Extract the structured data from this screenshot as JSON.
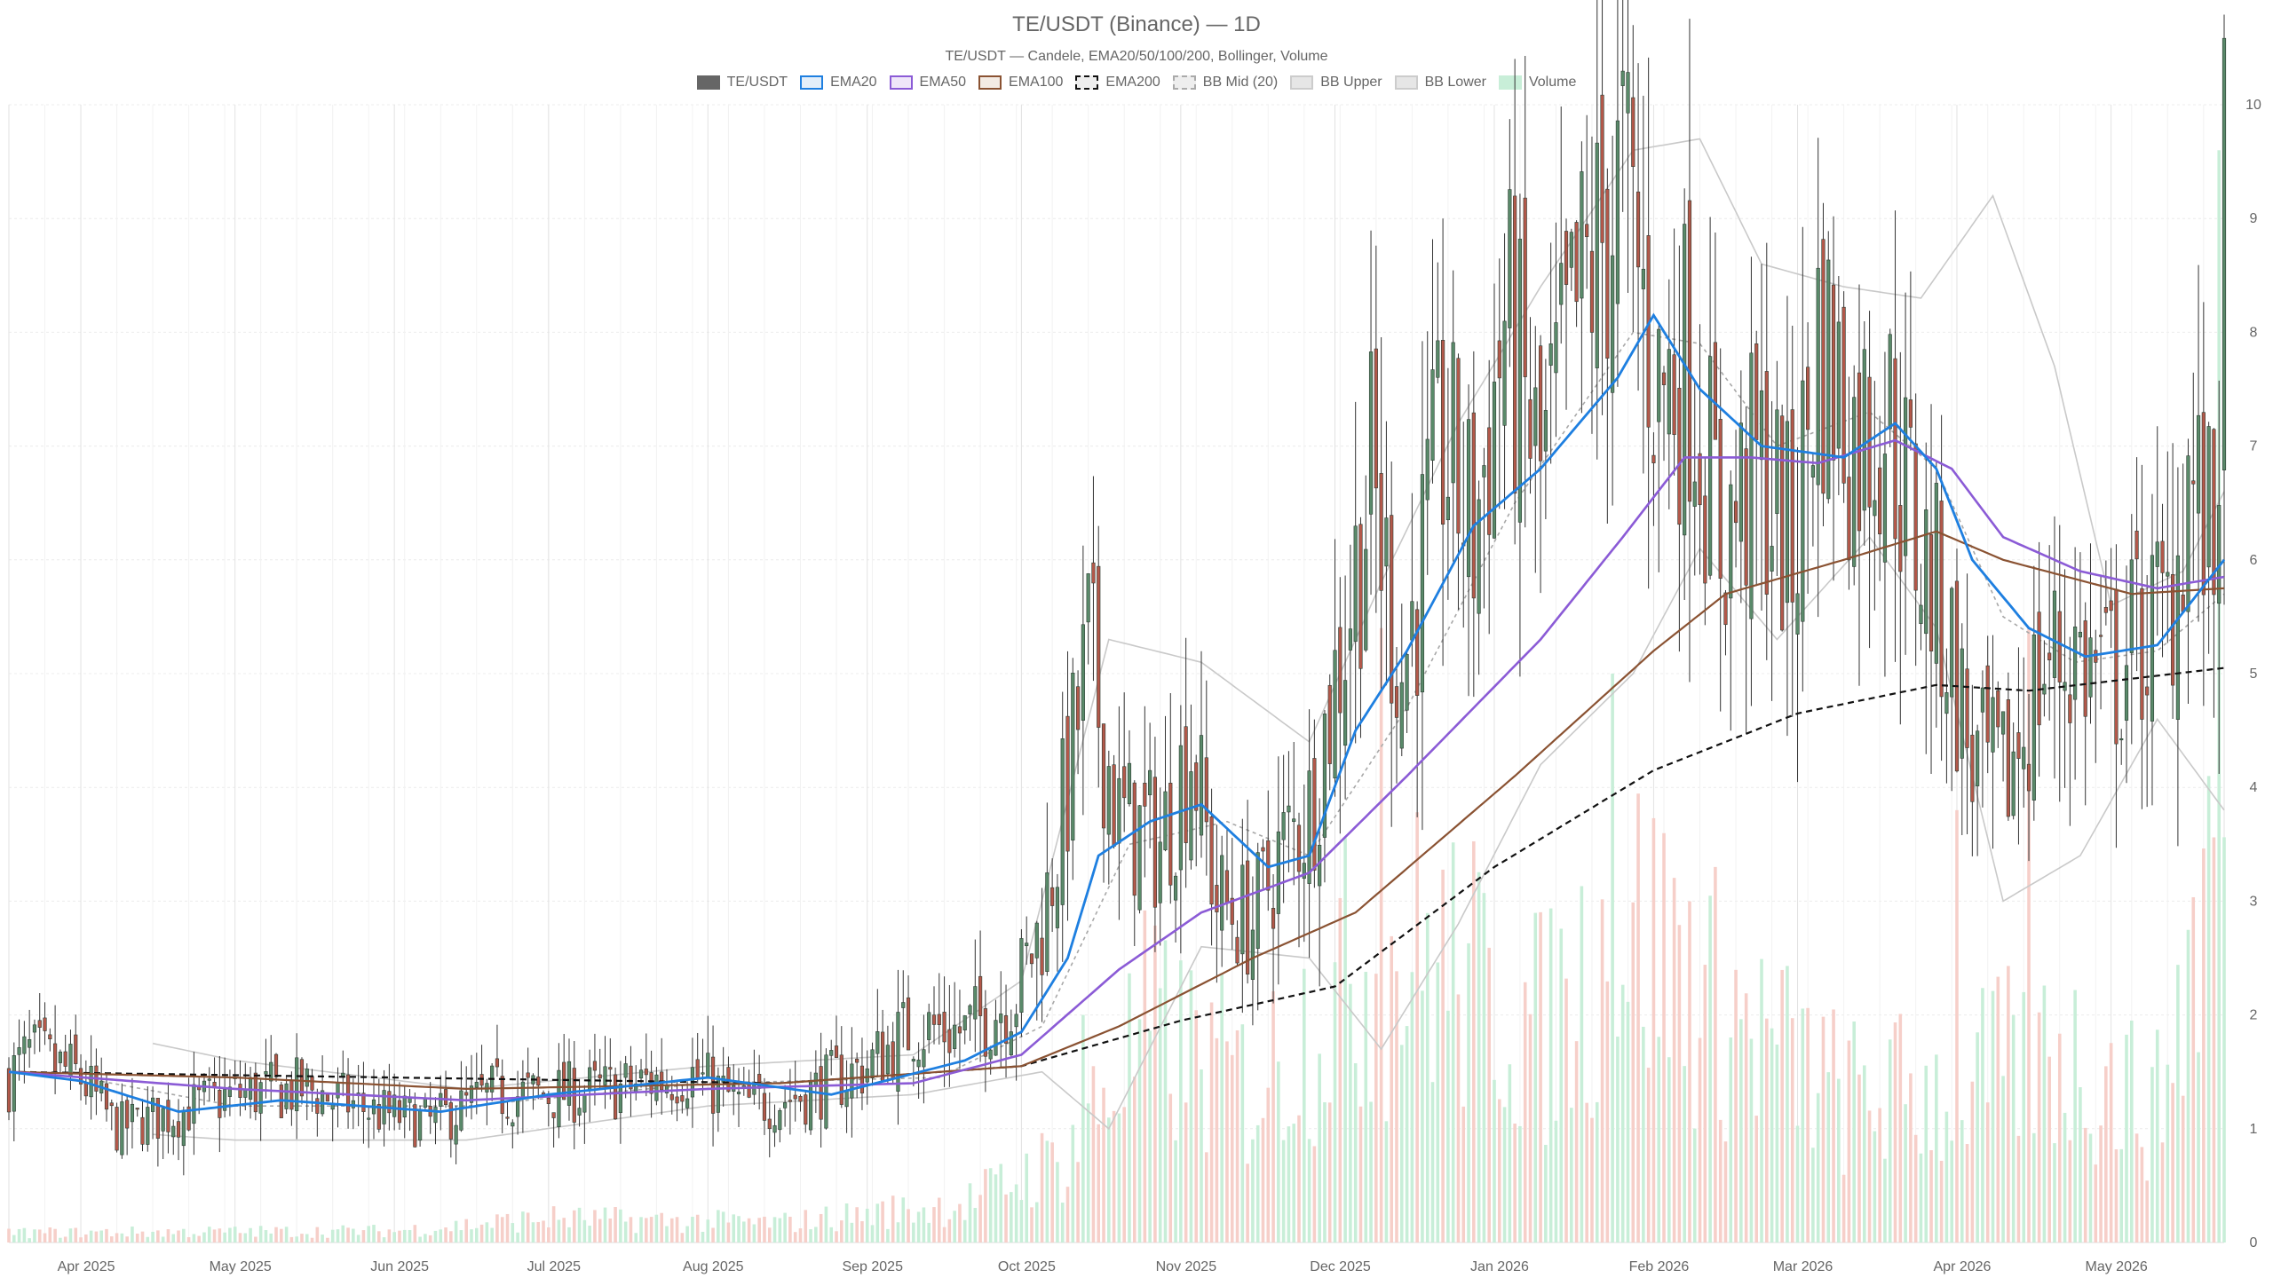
{
  "chart_data": {
    "type": "candlestick",
    "title": "TE/USDT (Binance) — 1D",
    "subtitle": "TE/USDT — Candele, EMA20/50/100/200, Bollinger, Volume",
    "legend": [
      {
        "label": "TE/USDT",
        "key": "candles",
        "fill": "#666666",
        "stroke": "#666666",
        "dash": false
      },
      {
        "label": "EMA20",
        "key": "ema20",
        "fill": "#e3eef9",
        "stroke": "#1e7fe0",
        "dash": false
      },
      {
        "label": "EMA50",
        "key": "ema50",
        "fill": "#efe6f9",
        "stroke": "#8b5bd6",
        "dash": false
      },
      {
        "label": "EMA100",
        "key": "ema100",
        "fill": "#f3ebe4",
        "stroke": "#8a5232",
        "dash": false
      },
      {
        "label": "EMA200",
        "key": "ema200",
        "fill": "#eeeeee",
        "stroke": "#111111",
        "dash": true
      },
      {
        "label": "BB Mid (20)",
        "key": "bb_mid",
        "fill": "#eeeeee",
        "stroke": "#aaaaaa",
        "dash": true
      },
      {
        "label": "BB Upper",
        "key": "bb_upper",
        "fill": "#e6e6e6",
        "stroke": "#cccccc",
        "dash": false
      },
      {
        "label": "BB Lower",
        "key": "bb_lower",
        "fill": "#e6e6e6",
        "stroke": "#cccccc",
        "dash": false
      },
      {
        "label": "Volume",
        "key": "volume",
        "fill": "#c8eed8",
        "stroke": "#c8eed8",
        "dash": false
      }
    ],
    "x_tick_labels": [
      {
        "date": "2025-04-01",
        "label": "Apr 2025"
      },
      {
        "date": "2025-05-01",
        "label": "May 2025"
      },
      {
        "date": "2025-06-01",
        "label": "Jun 2025"
      },
      {
        "date": "2025-07-01",
        "label": "Jul 2025"
      },
      {
        "date": "2025-08-01",
        "label": "Aug 2025"
      },
      {
        "date": "2025-09-01",
        "label": "Sep 2025"
      },
      {
        "date": "2025-10-01",
        "label": "Oct 2025"
      },
      {
        "date": "2025-11-01",
        "label": "Nov 2025"
      },
      {
        "date": "2025-12-01",
        "label": "Dec 2025"
      },
      {
        "date": "2026-01-01",
        "label": "Jan 2026"
      },
      {
        "date": "2026-02-01",
        "label": "Feb 2026"
      },
      {
        "date": "2026-03-01",
        "label": "Mar 2026"
      },
      {
        "date": "2026-04-01",
        "label": "Apr 2026"
      },
      {
        "date": "2026-05-01",
        "label": "May 2026"
      }
    ],
    "y_ticks": [
      0,
      1,
      2,
      3,
      4,
      5,
      6,
      7,
      8,
      9,
      10
    ],
    "ylim": [
      0,
      10
    ],
    "x_range": [
      "2025-03-18",
      "2026-05-23"
    ],
    "grid": true,
    "legend_position": "top-center",
    "y_axis_side": "right",
    "colors": {
      "up": "#5a8a6a",
      "down": "#b3584a",
      "vol_up": "#c8eed8",
      "vol_down": "#f6cfc9",
      "grid": "#ebebeb"
    },
    "price_keypoints": [
      [
        "2025-03-18",
        1.45
      ],
      [
        "2025-03-22",
        1.65
      ],
      [
        "2025-04-01",
        1.45
      ],
      [
        "2025-04-08",
        1.0
      ],
      [
        "2025-04-20",
        1.15
      ],
      [
        "2025-05-01",
        1.3
      ],
      [
        "2025-05-15",
        1.35
      ],
      [
        "2025-05-28",
        1.15
      ],
      [
        "2025-06-08",
        1.05
      ],
      [
        "2025-06-20",
        1.3
      ],
      [
        "2025-07-01",
        1.3
      ],
      [
        "2025-07-15",
        1.35
      ],
      [
        "2025-07-28",
        1.5
      ],
      [
        "2025-08-08",
        1.2
      ],
      [
        "2025-08-20",
        1.3
      ],
      [
        "2025-09-01",
        1.55
      ],
      [
        "2025-09-10",
        1.9
      ],
      [
        "2025-09-20",
        1.85
      ],
      [
        "2025-09-30",
        2.2
      ],
      [
        "2025-10-05",
        2.8
      ],
      [
        "2025-10-10",
        4.0
      ],
      [
        "2025-10-14",
        5.2
      ],
      [
        "2025-10-20",
        3.7
      ],
      [
        "2025-10-28",
        3.5
      ],
      [
        "2025-11-03",
        4.4
      ],
      [
        "2025-11-08",
        3.0
      ],
      [
        "2025-11-15",
        2.8
      ],
      [
        "2025-11-20",
        3.4
      ],
      [
        "2025-11-26",
        3.8
      ],
      [
        "2025-12-03",
        5.4
      ],
      [
        "2025-12-08",
        6.7
      ],
      [
        "2025-12-14",
        5.0
      ],
      [
        "2025-12-22",
        7.0
      ],
      [
        "2025-12-28",
        6.2
      ],
      [
        "2026-01-03",
        8.1
      ],
      [
        "2026-01-10",
        6.7
      ],
      [
        "2026-01-18",
        8.3
      ],
      [
        "2026-01-26",
        9.3
      ],
      [
        "2026-02-02",
        7.5
      ],
      [
        "2026-02-08",
        7.8
      ],
      [
        "2026-02-14",
        6.2
      ],
      [
        "2026-02-22",
        6.8
      ],
      [
        "2026-02-28",
        6.0
      ],
      [
        "2026-03-05",
        8.0
      ],
      [
        "2026-03-12",
        7.1
      ],
      [
        "2026-03-18",
        7.4
      ],
      [
        "2026-03-24",
        6.2
      ],
      [
        "2026-03-30",
        5.4
      ],
      [
        "2026-04-04",
        4.2
      ],
      [
        "2026-04-10",
        4.0
      ],
      [
        "2026-04-18",
        5.1
      ],
      [
        "2026-04-24",
        5.2
      ],
      [
        "2026-04-30",
        4.9
      ],
      [
        "2026-05-06",
        5.3
      ],
      [
        "2026-05-12",
        5.5
      ],
      [
        "2026-05-16",
        6.8
      ],
      [
        "2026-05-21",
        5.9
      ],
      [
        "2026-05-23",
        9.0
      ]
    ],
    "ema20_keypoints": [
      [
        "2025-03-18",
        1.5
      ],
      [
        "2025-04-01",
        1.42
      ],
      [
        "2025-04-20",
        1.15
      ],
      [
        "2025-05-10",
        1.25
      ],
      [
        "2025-06-10",
        1.15
      ],
      [
        "2025-07-01",
        1.3
      ],
      [
        "2025-08-01",
        1.45
      ],
      [
        "2025-08-25",
        1.3
      ],
      [
        "2025-09-20",
        1.6
      ],
      [
        "2025-10-01",
        1.85
      ],
      [
        "2025-10-10",
        2.5
      ],
      [
        "2025-10-16",
        3.4
      ],
      [
        "2025-10-26",
        3.7
      ],
      [
        "2025-11-05",
        3.85
      ],
      [
        "2025-11-18",
        3.3
      ],
      [
        "2025-11-26",
        3.4
      ],
      [
        "2025-12-05",
        4.5
      ],
      [
        "2025-12-15",
        5.2
      ],
      [
        "2025-12-28",
        6.3
      ],
      [
        "2026-01-10",
        6.8
      ],
      [
        "2026-01-25",
        7.6
      ],
      [
        "2026-02-01",
        8.15
      ],
      [
        "2026-02-10",
        7.5
      ],
      [
        "2026-02-22",
        7.0
      ],
      [
        "2026-03-10",
        6.9
      ],
      [
        "2026-03-20",
        7.2
      ],
      [
        "2026-03-28",
        6.8
      ],
      [
        "2026-04-04",
        6.0
      ],
      [
        "2026-04-15",
        5.4
      ],
      [
        "2026-04-26",
        5.15
      ],
      [
        "2026-05-10",
        5.25
      ],
      [
        "2026-05-23",
        6.0
      ]
    ],
    "ema50_keypoints": [
      [
        "2025-03-18",
        1.5
      ],
      [
        "2025-05-01",
        1.35
      ],
      [
        "2025-06-15",
        1.25
      ],
      [
        "2025-08-01",
        1.35
      ],
      [
        "2025-09-10",
        1.4
      ],
      [
        "2025-10-01",
        1.65
      ],
      [
        "2025-10-20",
        2.4
      ],
      [
        "2025-11-05",
        2.9
      ],
      [
        "2025-11-26",
        3.25
      ],
      [
        "2025-12-15",
        4.1
      ],
      [
        "2026-01-10",
        5.3
      ],
      [
        "2026-01-26",
        6.2
      ],
      [
        "2026-02-07",
        6.9
      ],
      [
        "2026-02-20",
        6.9
      ],
      [
        "2026-03-05",
        6.85
      ],
      [
        "2026-03-20",
        7.05
      ],
      [
        "2026-03-31",
        6.8
      ],
      [
        "2026-04-10",
        6.2
      ],
      [
        "2026-04-25",
        5.9
      ],
      [
        "2026-05-10",
        5.75
      ],
      [
        "2026-05-23",
        5.85
      ]
    ],
    "ema100_keypoints": [
      [
        "2025-03-18",
        1.5
      ],
      [
        "2025-05-01",
        1.45
      ],
      [
        "2025-06-15",
        1.35
      ],
      [
        "2025-08-15",
        1.4
      ],
      [
        "2025-10-01",
        1.55
      ],
      [
        "2025-10-20",
        1.9
      ],
      [
        "2025-11-15",
        2.5
      ],
      [
        "2025-12-05",
        2.9
      ],
      [
        "2026-01-05",
        4.1
      ],
      [
        "2026-02-01",
        5.2
      ],
      [
        "2026-02-15",
        5.7
      ],
      [
        "2026-03-10",
        6.0
      ],
      [
        "2026-03-28",
        6.25
      ],
      [
        "2026-04-10",
        6.0
      ],
      [
        "2026-05-05",
        5.7
      ],
      [
        "2026-05-23",
        5.75
      ]
    ],
    "ema200_keypoints": [
      [
        "2025-03-18",
        1.5
      ],
      [
        "2025-06-01",
        1.45
      ],
      [
        "2025-08-15",
        1.4
      ],
      [
        "2025-10-01",
        1.55
      ],
      [
        "2025-11-01",
        1.95
      ],
      [
        "2025-12-01",
        2.25
      ],
      [
        "2026-01-01",
        3.3
      ],
      [
        "2026-02-01",
        4.15
      ],
      [
        "2026-03-01",
        4.65
      ],
      [
        "2026-03-28",
        4.9
      ],
      [
        "2026-04-15",
        4.85
      ],
      [
        "2026-05-23",
        5.05
      ]
    ],
    "bb_mid_keypoints": [
      [
        "2025-04-01",
        1.45
      ],
      [
        "2025-05-01",
        1.2
      ],
      [
        "2025-06-15",
        1.2
      ],
      [
        "2025-08-01",
        1.4
      ],
      [
        "2025-09-15",
        1.45
      ],
      [
        "2025-10-05",
        1.9
      ],
      [
        "2025-10-22",
        3.5
      ],
      [
        "2025-11-10",
        3.7
      ],
      [
        "2025-11-26",
        3.4
      ],
      [
        "2025-12-15",
        4.7
      ],
      [
        "2026-01-05",
        6.5
      ],
      [
        "2026-01-28",
        8.0
      ],
      [
        "2026-02-10",
        7.9
      ],
      [
        "2026-02-25",
        7.0
      ],
      [
        "2026-03-15",
        7.3
      ],
      [
        "2026-03-28",
        6.8
      ],
      [
        "2026-04-10",
        5.5
      ],
      [
        "2026-04-24",
        5.1
      ],
      [
        "2026-05-10",
        5.2
      ],
      [
        "2026-05-23",
        5.7
      ]
    ],
    "bb_upper_keypoints": [
      [
        "2025-04-15",
        1.75
      ],
      [
        "2025-05-01",
        1.6
      ],
      [
        "2025-06-15",
        1.35
      ],
      [
        "2025-08-01",
        1.55
      ],
      [
        "2025-09-10",
        1.65
      ],
      [
        "2025-10-01",
        2.3
      ],
      [
        "2025-10-18",
        5.3
      ],
      [
        "2025-11-05",
        5.1
      ],
      [
        "2025-11-26",
        4.4
      ],
      [
        "2025-12-10",
        5.8
      ],
      [
        "2025-12-25",
        7.2
      ],
      [
        "2026-01-10",
        8.4
      ],
      [
        "2026-01-28",
        9.6
      ],
      [
        "2026-02-10",
        9.7
      ],
      [
        "2026-02-22",
        8.6
      ],
      [
        "2026-03-10",
        8.4
      ],
      [
        "2026-03-25",
        8.3
      ],
      [
        "2026-04-08",
        9.2
      ],
      [
        "2026-04-20",
        7.7
      ],
      [
        "2026-05-01",
        5.6
      ],
      [
        "2026-05-15",
        5.9
      ],
      [
        "2026-05-23",
        6.6
      ]
    ],
    "bb_lower_keypoints": [
      [
        "2025-04-15",
        0.95
      ],
      [
        "2025-05-01",
        0.9
      ],
      [
        "2025-06-15",
        0.9
      ],
      [
        "2025-08-01",
        1.2
      ],
      [
        "2025-09-10",
        1.3
      ],
      [
        "2025-10-05",
        1.5
      ],
      [
        "2025-10-18",
        1.0
      ],
      [
        "2025-11-05",
        2.6
      ],
      [
        "2025-11-26",
        2.5
      ],
      [
        "2025-12-10",
        1.7
      ],
      [
        "2025-12-25",
        2.8
      ],
      [
        "2026-01-10",
        4.2
      ],
      [
        "2026-01-28",
        5.0
      ],
      [
        "2026-02-10",
        6.1
      ],
      [
        "2026-02-25",
        5.3
      ],
      [
        "2026-03-15",
        6.2
      ],
      [
        "2026-03-28",
        5.4
      ],
      [
        "2026-04-10",
        3.0
      ],
      [
        "2026-04-25",
        3.4
      ],
      [
        "2026-05-10",
        4.6
      ],
      [
        "2026-05-23",
        3.8
      ]
    ],
    "volume_keypoints": [
      [
        "2025-03-18",
        0.1
      ],
      [
        "2025-06-01",
        0.12
      ],
      [
        "2025-07-01",
        0.25
      ],
      [
        "2025-08-15",
        0.2
      ],
      [
        "2025-09-20",
        0.4
      ],
      [
        "2025-10-10",
        0.9
      ],
      [
        "2025-10-25",
        2.2
      ],
      [
        "2025-11-15",
        1.6
      ],
      [
        "2025-12-05",
        2.8
      ],
      [
        "2025-12-20",
        3.0
      ],
      [
        "2026-01-10",
        2.2
      ],
      [
        "2026-01-28",
        3.3
      ],
      [
        "2026-02-15",
        2.4
      ],
      [
        "2026-03-10",
        1.5
      ],
      [
        "2026-04-01",
        1.6
      ],
      [
        "2026-04-20",
        2.0
      ],
      [
        "2026-05-10",
        1.4
      ],
      [
        "2026-05-23",
        4.5
      ]
    ],
    "volume_spikes": [
      [
        "2025-10-13",
        2.0
      ],
      [
        "2025-12-10",
        5.4
      ],
      [
        "2026-01-24",
        5.0
      ],
      [
        "2026-04-15",
        5.4
      ],
      [
        "2026-05-20",
        4.1
      ],
      [
        "2026-05-22",
        9.6
      ],
      [
        "2026-04-01",
        3.8
      ]
    ]
  }
}
